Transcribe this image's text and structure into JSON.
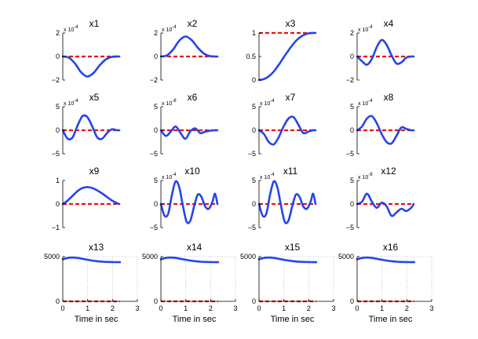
{
  "colors": {
    "signal": "#2545e8",
    "reference": "#e8140c",
    "axis": "#000000",
    "grid": "#b8b8b8"
  },
  "chart_data": [
    {
      "type": "line",
      "title": "x1",
      "multiplier": "x 10",
      "multiplier_exp": "-4",
      "yticks": [
        "2",
        "0",
        "−2"
      ],
      "ylim": [
        -2,
        2
      ],
      "xlim": [
        0,
        2.3
      ],
      "reference": 0,
      "series": [
        {
          "x": [
            0,
            0.25,
            0.5,
            0.75,
            1.0,
            1.25,
            1.5,
            1.75,
            2.0,
            2.2,
            2.3
          ],
          "y": [
            0,
            -0.1,
            -0.6,
            -1.35,
            -1.7,
            -1.4,
            -0.75,
            -0.25,
            -0.03,
            0,
            0
          ]
        }
      ]
    },
    {
      "type": "line",
      "title": "x2",
      "multiplier": "x 10",
      "multiplier_exp": "-4",
      "yticks": [
        "2",
        "0",
        "−2"
      ],
      "ylim": [
        -2,
        2
      ],
      "xlim": [
        0,
        2.3
      ],
      "reference": 0,
      "series": [
        {
          "x": [
            0,
            0.25,
            0.5,
            0.75,
            1.0,
            1.25,
            1.5,
            1.75,
            2.0,
            2.2,
            2.3
          ],
          "y": [
            0,
            0.1,
            0.6,
            1.35,
            1.7,
            1.4,
            0.75,
            0.25,
            0.03,
            0,
            0
          ]
        }
      ]
    },
    {
      "type": "line",
      "title": "x3",
      "multiplier": "",
      "multiplier_exp": "",
      "yticks": [
        "1",
        "0.5",
        "0"
      ],
      "ylim": [
        0,
        1
      ],
      "xlim": [
        0,
        2.3
      ],
      "reference": 1,
      "series": [
        {
          "x": [
            0,
            0.2,
            0.4,
            0.6,
            0.8,
            1.0,
            1.2,
            1.4,
            1.6,
            1.8,
            2.0,
            2.2,
            2.3
          ],
          "y": [
            0,
            0.02,
            0.08,
            0.18,
            0.32,
            0.48,
            0.63,
            0.77,
            0.88,
            0.95,
            0.99,
            1,
            1
          ]
        }
      ]
    },
    {
      "type": "line",
      "title": "x4",
      "multiplier": "x 10",
      "multiplier_exp": "-4",
      "yticks": [
        "2",
        "0",
        "−2"
      ],
      "ylim": [
        -2,
        2
      ],
      "xlim": [
        0,
        2.3
      ],
      "reference": 0,
      "series": [
        {
          "x": [
            0,
            0.2,
            0.4,
            0.6,
            0.8,
            1.0,
            1.2,
            1.4,
            1.6,
            1.8,
            2.0,
            2.2,
            2.3
          ],
          "y": [
            0,
            -0.4,
            -0.7,
            -0.2,
            0.8,
            1.4,
            1.0,
            0.1,
            -0.6,
            -0.5,
            -0.1,
            0,
            0
          ]
        }
      ]
    },
    {
      "type": "line",
      "title": "x5",
      "multiplier": "x 10",
      "multiplier_exp": "-4",
      "yticks": [
        "5",
        "0",
        "−5"
      ],
      "ylim": [
        -5,
        5
      ],
      "xlim": [
        0,
        2.3
      ],
      "reference": 0,
      "series": [
        {
          "x": [
            0,
            0.2,
            0.4,
            0.6,
            0.8,
            1.0,
            1.2,
            1.4,
            1.6,
            1.8,
            2.0,
            2.2,
            2.3
          ],
          "y": [
            0,
            -1.8,
            -1.5,
            1.0,
            3.0,
            2.8,
            0.8,
            -1.5,
            -1.8,
            -0.6,
            0.2,
            0,
            0
          ]
        }
      ]
    },
    {
      "type": "line",
      "title": "x6",
      "multiplier": "x 10",
      "multiplier_exp": "-8",
      "yticks": [
        "5",
        "0",
        "−5"
      ],
      "ylim": [
        -5,
        5
      ],
      "xlim": [
        0,
        2.3
      ],
      "reference": 0,
      "series": [
        {
          "x": [
            0,
            0.2,
            0.4,
            0.6,
            0.8,
            1.0,
            1.2,
            1.4,
            1.6,
            1.8,
            2.0,
            2.2,
            2.3
          ],
          "y": [
            0,
            -1.2,
            -0.3,
            0.8,
            -0.6,
            -1.8,
            -0.2,
            0.4,
            -0.6,
            -0.3,
            -0.1,
            0,
            0
          ]
        }
      ]
    },
    {
      "type": "line",
      "title": "x7",
      "multiplier": "x 10",
      "multiplier_exp": "-4",
      "yticks": [
        "5",
        "0",
        "−5"
      ],
      "ylim": [
        -5,
        5
      ],
      "xlim": [
        0,
        2.3
      ],
      "reference": 0,
      "series": [
        {
          "x": [
            0,
            0.2,
            0.4,
            0.6,
            0.8,
            1.0,
            1.2,
            1.4,
            1.6,
            1.8,
            2.0,
            2.2,
            2.3
          ],
          "y": [
            0,
            -0.8,
            -2.5,
            -3.0,
            -1.5,
            0.8,
            2.5,
            2.8,
            1.2,
            -0.6,
            -0.3,
            0,
            0
          ]
        }
      ]
    },
    {
      "type": "line",
      "title": "x8",
      "multiplier": "x 10",
      "multiplier_exp": "-4",
      "yticks": [
        "5",
        "0",
        "−5"
      ],
      "ylim": [
        -5,
        5
      ],
      "xlim": [
        0,
        2.3
      ],
      "reference": 0,
      "series": [
        {
          "x": [
            0,
            0.2,
            0.4,
            0.6,
            0.8,
            1.0,
            1.2,
            1.4,
            1.6,
            1.8,
            2.0,
            2.2,
            2.3
          ],
          "y": [
            0,
            0.8,
            2.5,
            3.0,
            1.5,
            -0.8,
            -2.5,
            -2.8,
            -1.2,
            0.6,
            0.3,
            0,
            0
          ]
        }
      ]
    },
    {
      "type": "line",
      "title": "x9",
      "multiplier": "",
      "multiplier_exp": "",
      "yticks": [
        "1",
        "0",
        "−1"
      ],
      "ylim": [
        -1,
        1
      ],
      "xlim": [
        0,
        2.3
      ],
      "reference": 0,
      "series": [
        {
          "x": [
            0,
            0.2,
            0.4,
            0.6,
            0.8,
            1.0,
            1.2,
            1.4,
            1.6,
            1.8,
            2.0,
            2.2,
            2.3
          ],
          "y": [
            0,
            0.15,
            0.35,
            0.55,
            0.68,
            0.72,
            0.68,
            0.58,
            0.45,
            0.3,
            0.15,
            0.04,
            0
          ]
        }
      ]
    },
    {
      "type": "line",
      "title": "x10",
      "multiplier": "x 10",
      "multiplier_exp": "-4",
      "yticks": [
        "5",
        "0",
        "−5"
      ],
      "ylim": [
        -5,
        5
      ],
      "xlim": [
        0,
        2.3
      ],
      "reference": 0,
      "series": [
        {
          "x": [
            0,
            0.15,
            0.3,
            0.45,
            0.6,
            0.75,
            0.9,
            1.05,
            1.2,
            1.35,
            1.5,
            1.65,
            1.8,
            1.95,
            2.1,
            2.2,
            2.3
          ],
          "y": [
            0,
            -2.5,
            -2.0,
            2.0,
            4.8,
            3.5,
            -0.5,
            -3.8,
            -3.5,
            -0.5,
            2.0,
            1.5,
            -0.5,
            -1.0,
            0.5,
            2.2,
            0
          ]
        }
      ]
    },
    {
      "type": "line",
      "title": "x11",
      "multiplier": "x 10",
      "multiplier_exp": "-4",
      "yticks": [
        "5",
        "0",
        "−5"
      ],
      "ylim": [
        -5,
        5
      ],
      "xlim": [
        0,
        2.3
      ],
      "reference": 0,
      "series": [
        {
          "x": [
            0,
            0.15,
            0.3,
            0.45,
            0.6,
            0.75,
            0.9,
            1.05,
            1.2,
            1.35,
            1.5,
            1.65,
            1.8,
            1.95,
            2.1,
            2.2,
            2.3
          ],
          "y": [
            0,
            -2.5,
            -2.0,
            2.0,
            4.8,
            3.5,
            -0.5,
            -3.8,
            -3.5,
            -0.5,
            2.0,
            1.5,
            -0.5,
            -1.0,
            0.5,
            2.2,
            0
          ]
        }
      ]
    },
    {
      "type": "line",
      "title": "x12",
      "multiplier": "x 10",
      "multiplier_exp": "-9",
      "yticks": [
        "5",
        "0",
        "−5"
      ],
      "ylim": [
        -5,
        5
      ],
      "xlim": [
        0,
        2.3
      ],
      "reference": 0,
      "series": [
        {
          "x": [
            0,
            0.2,
            0.4,
            0.6,
            0.8,
            1.0,
            1.2,
            1.4,
            1.6,
            1.8,
            2.0,
            2.2,
            2.3
          ],
          "y": [
            0,
            0.5,
            2.2,
            0.5,
            -0.8,
            0.3,
            -0.5,
            -2.5,
            -1.8,
            -1.0,
            -1.5,
            -0.8,
            0
          ]
        }
      ]
    },
    {
      "type": "line",
      "title": "x13",
      "multiplier": "",
      "multiplier_exp": "",
      "yticks": [
        "5000",
        "0"
      ],
      "ylim": [
        0,
        5000
      ],
      "xlim": [
        0,
        3
      ],
      "xticks": [
        "0",
        "1",
        "2",
        "3"
      ],
      "xlabel": "Time in sec",
      "reference": 0,
      "grid": true,
      "series": [
        {
          "x": [
            0,
            0.2,
            0.4,
            0.6,
            0.8,
            1.0,
            1.2,
            1.4,
            1.6,
            1.8,
            2.0,
            2.2,
            2.3
          ],
          "y": [
            4700,
            4850,
            4900,
            4850,
            4750,
            4650,
            4550,
            4480,
            4430,
            4400,
            4390,
            4380,
            4380
          ]
        }
      ]
    },
    {
      "type": "line",
      "title": "x14",
      "multiplier": "",
      "multiplier_exp": "",
      "yticks": [
        "5000",
        "0"
      ],
      "ylim": [
        0,
        5000
      ],
      "xlim": [
        0,
        3
      ],
      "xticks": [
        "0",
        "1",
        "2",
        "3"
      ],
      "xlabel": "Time in sec",
      "reference": 0,
      "grid": true,
      "series": [
        {
          "x": [
            0,
            0.2,
            0.4,
            0.6,
            0.8,
            1.0,
            1.2,
            1.4,
            1.6,
            1.8,
            2.0,
            2.2,
            2.3
          ],
          "y": [
            4700,
            4850,
            4900,
            4850,
            4750,
            4650,
            4550,
            4480,
            4430,
            4400,
            4390,
            4380,
            4380
          ]
        }
      ]
    },
    {
      "type": "line",
      "title": "x15",
      "multiplier": "",
      "multiplier_exp": "",
      "yticks": [
        "5000",
        "0"
      ],
      "ylim": [
        0,
        5000
      ],
      "xlim": [
        0,
        3
      ],
      "xticks": [
        "0",
        "1",
        "2",
        "3"
      ],
      "xlabel": "Time in sec",
      "reference": 0,
      "grid": true,
      "series": [
        {
          "x": [
            0,
            0.2,
            0.4,
            0.6,
            0.8,
            1.0,
            1.2,
            1.4,
            1.6,
            1.8,
            2.0,
            2.2,
            2.3
          ],
          "y": [
            4700,
            4850,
            4900,
            4850,
            4750,
            4650,
            4550,
            4480,
            4430,
            4400,
            4390,
            4380,
            4380
          ]
        }
      ]
    },
    {
      "type": "line",
      "title": "x16",
      "multiplier": "",
      "multiplier_exp": "",
      "yticks": [
        "5000",
        "0"
      ],
      "ylim": [
        0,
        5000
      ],
      "xlim": [
        0,
        3
      ],
      "xticks": [
        "0",
        "1",
        "2",
        "3"
      ],
      "xlabel": "Time in sec",
      "reference": 0,
      "grid": true,
      "series": [
        {
          "x": [
            0,
            0.2,
            0.4,
            0.6,
            0.8,
            1.0,
            1.2,
            1.4,
            1.6,
            1.8,
            2.0,
            2.2,
            2.3
          ],
          "y": [
            4700,
            4850,
            4900,
            4850,
            4750,
            4650,
            4550,
            4480,
            4430,
            4400,
            4390,
            4380,
            4380
          ]
        }
      ]
    }
  ]
}
